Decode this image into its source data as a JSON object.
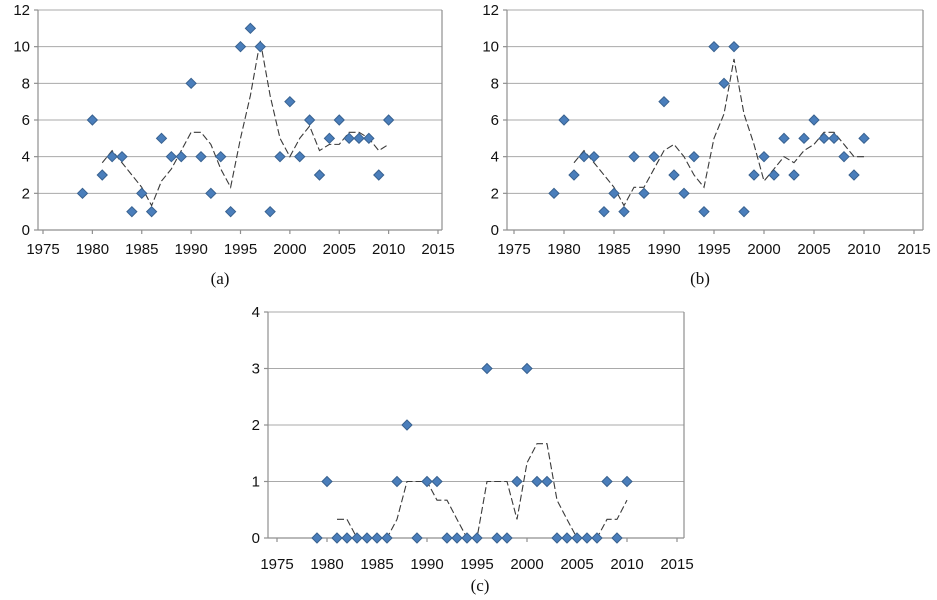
{
  "figure": {
    "background": "#ffffff",
    "marker_color": "#4a7ebb",
    "marker_border": "#38618f",
    "trend_color": "#3a3a3a",
    "grid_color": "#a9a9a9",
    "axis_color": "#8f8f8f",
    "text_color": "#111111"
  },
  "chart_data": [
    {
      "id": "a",
      "type": "scatter",
      "caption": "(a)",
      "title": "",
      "xlabel": "",
      "ylabel": "",
      "ylim": [
        0,
        12
      ],
      "x_ticks": [
        1975,
        1980,
        1985,
        1990,
        1995,
        2000,
        2005,
        2010,
        2015
      ],
      "y_ticks": [
        0,
        2,
        4,
        6,
        8,
        10,
        12
      ],
      "grid": true,
      "legend": "none",
      "years": [
        1979,
        1980,
        1981,
        1982,
        1983,
        1984,
        1985,
        1986,
        1987,
        1988,
        1989,
        1990,
        1991,
        1992,
        1993,
        1994,
        1995,
        1996,
        1997,
        1998,
        1999,
        2000,
        2001,
        2002,
        2003,
        2004,
        2005,
        2006,
        2007,
        2008,
        2009,
        2010
      ],
      "values": [
        2,
        6,
        3,
        4,
        4,
        1,
        2,
        1,
        5,
        4,
        4,
        8,
        4,
        2,
        4,
        1,
        10,
        11,
        10,
        1,
        4,
        7,
        4,
        6,
        3,
        5,
        6,
        5,
        5,
        5,
        3,
        6
      ],
      "trend": {
        "style": "dashed-line",
        "description": "3-year trailing moving average",
        "years": [
          1981,
          1982,
          1983,
          1984,
          1985,
          1986,
          1987,
          1988,
          1989,
          1990,
          1991,
          1992,
          1993,
          1994,
          1995,
          1996,
          1997,
          1998,
          1999,
          2000,
          2001,
          2002,
          2003,
          2004,
          2005,
          2006,
          2007,
          2008,
          2009,
          2010
        ],
        "values": [
          3.67,
          4.33,
          3.67,
          3,
          2.33,
          1.33,
          2.67,
          3.33,
          4.33,
          5.33,
          5.33,
          4.67,
          3.33,
          2.33,
          5,
          7.33,
          10.33,
          7.33,
          5,
          4,
          5,
          5.67,
          4.33,
          4.67,
          4.67,
          5.33,
          5.33,
          5,
          4.33,
          4.67
        ]
      }
    },
    {
      "id": "b",
      "type": "scatter",
      "caption": "(b)",
      "title": "",
      "xlabel": "",
      "ylabel": "",
      "ylim": [
        0,
        12
      ],
      "x_ticks": [
        1975,
        1980,
        1985,
        1990,
        1995,
        2000,
        2005,
        2010,
        2015
      ],
      "y_ticks": [
        0,
        2,
        4,
        6,
        8,
        10,
        12
      ],
      "grid": true,
      "legend": "none",
      "years": [
        1979,
        1980,
        1981,
        1982,
        1983,
        1984,
        1985,
        1986,
        1987,
        1988,
        1989,
        1990,
        1991,
        1992,
        1993,
        1994,
        1995,
        1996,
        1997,
        1998,
        1999,
        2000,
        2001,
        2002,
        2003,
        2004,
        2005,
        2006,
        2007,
        2008,
        2009,
        2010
      ],
      "values": [
        2,
        6,
        3,
        4,
        4,
        1,
        2,
        1,
        4,
        2,
        4,
        7,
        3,
        2,
        4,
        1,
        10,
        8,
        10,
        1,
        3,
        4,
        3,
        5,
        3,
        5,
        6,
        5,
        5,
        4,
        3,
        5
      ],
      "trend": {
        "style": "dashed-line",
        "description": "3-year trailing moving average",
        "years": [
          1981,
          1982,
          1983,
          1984,
          1985,
          1986,
          1987,
          1988,
          1989,
          1990,
          1991,
          1992,
          1993,
          1994,
          1995,
          1996,
          1997,
          1998,
          1999,
          2000,
          2001,
          2002,
          2003,
          2004,
          2005,
          2006,
          2007,
          2008,
          2009,
          2010
        ],
        "values": [
          3.67,
          4.33,
          3.67,
          3,
          2.33,
          1.33,
          2.33,
          2.33,
          3.33,
          4.33,
          4.67,
          4,
          3,
          2.33,
          5,
          6.33,
          9.33,
          6.33,
          4.67,
          2.67,
          3.33,
          4,
          3.67,
          4.33,
          4.67,
          5.33,
          5.33,
          4.67,
          4,
          4
        ]
      }
    },
    {
      "id": "c",
      "type": "scatter",
      "caption": "(c)",
      "title": "",
      "xlabel": "",
      "ylabel": "",
      "ylim": [
        0,
        4
      ],
      "x_ticks": [
        1975,
        1980,
        1985,
        1990,
        1995,
        2000,
        2005,
        2010,
        2015
      ],
      "y_ticks": [
        0,
        1,
        2,
        3,
        4
      ],
      "grid": true,
      "legend": "none",
      "years": [
        1979,
        1980,
        1981,
        1982,
        1983,
        1984,
        1985,
        1986,
        1987,
        1988,
        1989,
        1990,
        1991,
        1992,
        1993,
        1994,
        1995,
        1996,
        1997,
        1998,
        1999,
        2000,
        2001,
        2002,
        2003,
        2004,
        2005,
        2006,
        2007,
        2008,
        2009,
        2010
      ],
      "values": [
        0,
        1,
        0,
        0,
        0,
        0,
        0,
        0,
        1,
        2,
        0,
        1,
        1,
        0,
        0,
        0,
        0,
        3,
        0,
        0,
        1,
        3,
        1,
        1,
        0,
        0,
        0,
        0,
        0,
        1,
        0,
        1
      ],
      "trend": {
        "style": "dashed-line",
        "description": "3-year trailing moving average",
        "years": [
          1981,
          1982,
          1983,
          1984,
          1985,
          1986,
          1987,
          1988,
          1989,
          1990,
          1991,
          1992,
          1993,
          1994,
          1995,
          1996,
          1997,
          1998,
          1999,
          2000,
          2001,
          2002,
          2003,
          2004,
          2005,
          2006,
          2007,
          2008,
          2009,
          2010
        ],
        "values": [
          0.33,
          0.33,
          0,
          0,
          0,
          0,
          0.33,
          1,
          1,
          1,
          0.67,
          0.67,
          0.33,
          0,
          0,
          1,
          1,
          1,
          0.33,
          1.33,
          1.67,
          1.67,
          0.67,
          0.33,
          0,
          0,
          0,
          0.33,
          0.33,
          0.67
        ]
      }
    }
  ]
}
